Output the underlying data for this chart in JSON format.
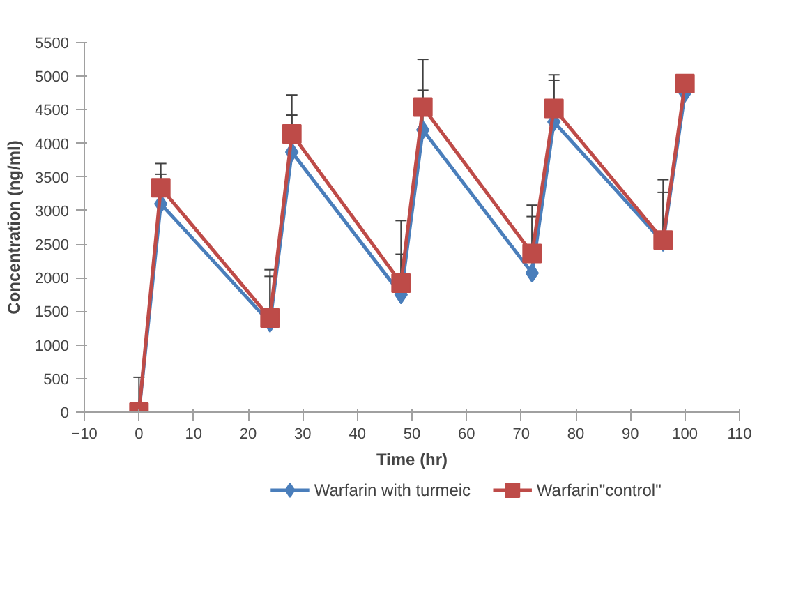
{
  "chart_data": {
    "type": "line",
    "xlabel": "Time (hr)",
    "ylabel": "Concentration (ng/ml)",
    "x": [
      0,
      4,
      24,
      28,
      48,
      52,
      72,
      76,
      96,
      100
    ],
    "xlim": [
      -10,
      110
    ],
    "xticks": [
      -10,
      0,
      10,
      20,
      30,
      40,
      50,
      60,
      70,
      80,
      90,
      100,
      110
    ],
    "ylim": [
      0,
      5500
    ],
    "yticks": [
      0,
      500,
      1000,
      1500,
      2000,
      2500,
      3000,
      3500,
      4000,
      4500,
      5000,
      5500
    ],
    "grid": false,
    "legend": "bottom",
    "line_style": "solid",
    "series": [
      {
        "name": "Warfarin with turmeic",
        "color": "#4a7ebb",
        "marker": "diamond",
        "values": [
          0,
          3100,
          1330,
          3870,
          1750,
          4200,
          2070,
          4320,
          2530,
          4750
        ],
        "errors": [
          [
            0,
            520
          ],
          [
            3100,
            3540
          ],
          [
            1330,
            2020
          ],
          [
            3870,
            4420
          ],
          [
            1750,
            2350
          ],
          [
            4200,
            4790
          ],
          [
            2070,
            2910
          ],
          [
            4320,
            4940
          ],
          [
            2530,
            3270
          ],
          null
        ]
      },
      {
        "name": "Warfarin\"control\"",
        "color": "#be4b48",
        "marker": "square",
        "values": [
          0,
          3340,
          1400,
          4140,
          1920,
          4540,
          2360,
          4520,
          2560,
          4890
        ],
        "errors": [
          null,
          [
            3340,
            3700
          ],
          [
            1400,
            2120
          ],
          [
            4140,
            4720
          ],
          [
            1920,
            2850
          ],
          [
            4540,
            5250
          ],
          [
            2360,
            3080
          ],
          [
            4520,
            5020
          ],
          [
            2560,
            3460
          ],
          null
        ]
      }
    ]
  }
}
